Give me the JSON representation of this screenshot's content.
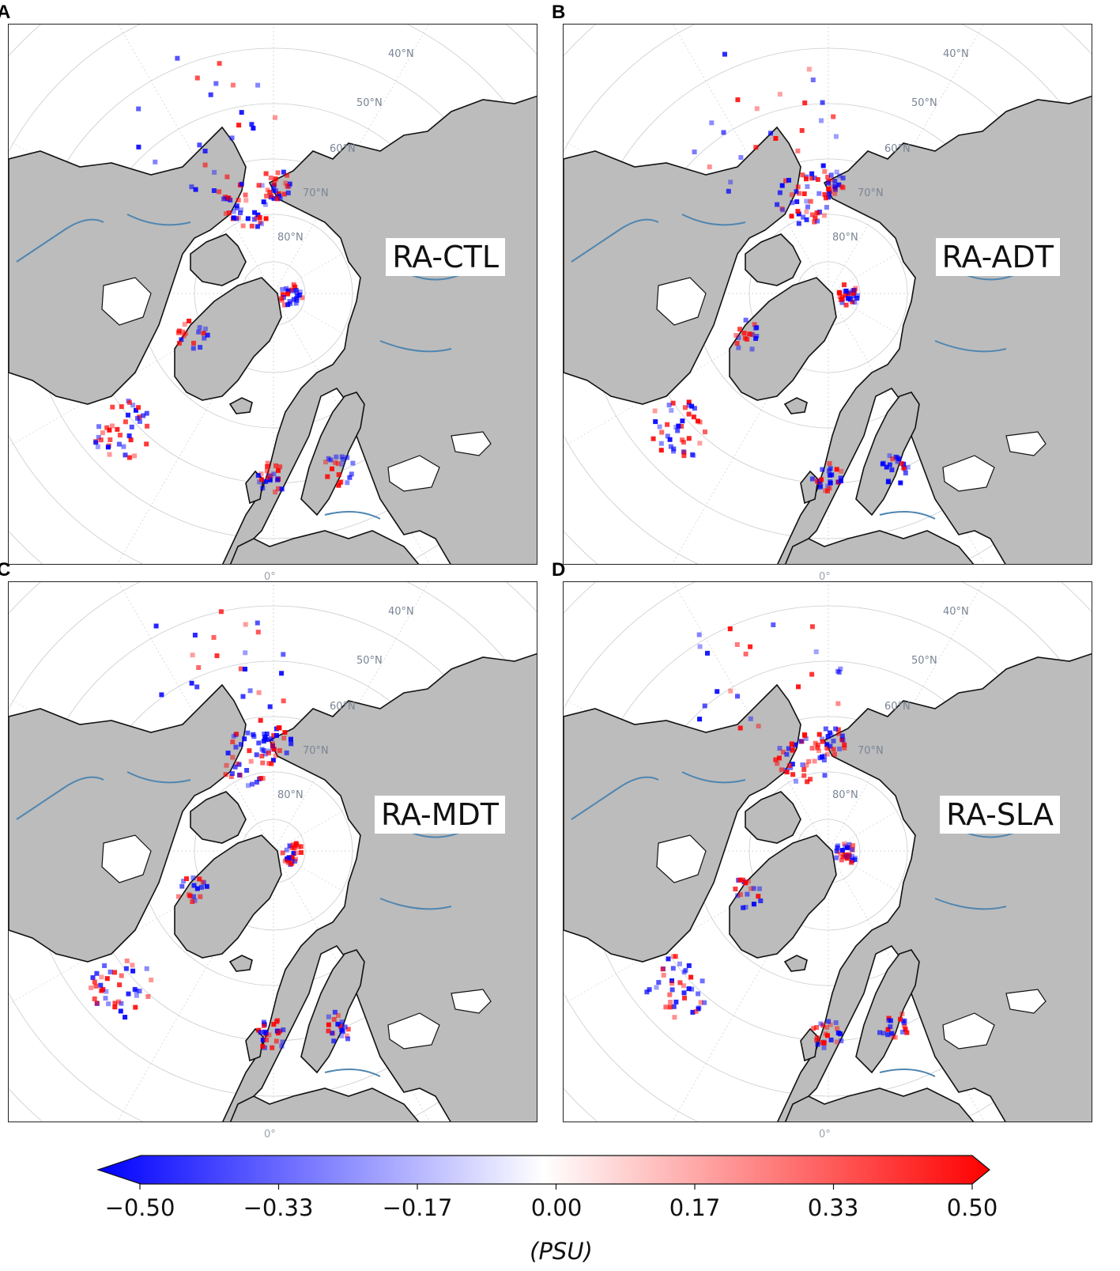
{
  "panels": [
    {
      "letter": "A",
      "label": "RA-CTL"
    },
    {
      "letter": "B",
      "label": "RA-ADT"
    },
    {
      "letter": "C",
      "label": "RA-MDT"
    },
    {
      "letter": "D",
      "label": "RA-SLA"
    }
  ],
  "latitude_labels": [
    "40°N",
    "50°N",
    "60°N",
    "70°N",
    "80°N"
  ],
  "longitude_label": "0°",
  "colorbar": {
    "unit": "(PSU)",
    "min": -0.5,
    "max": 0.5,
    "ticks": [
      "−0.50",
      "−0.33",
      "−0.17",
      "0.00",
      "0.17",
      "0.33",
      "0.50"
    ],
    "colors": {
      "negative": "#0000ff",
      "zero": "#ffffff",
      "positive": "#ff0000"
    }
  },
  "map_style": {
    "land": "#bcbcbc",
    "coast": "#111111",
    "ocean": "#ffffff",
    "rivers": "#4f86b0",
    "gridlines": "#c8ccd2"
  }
}
